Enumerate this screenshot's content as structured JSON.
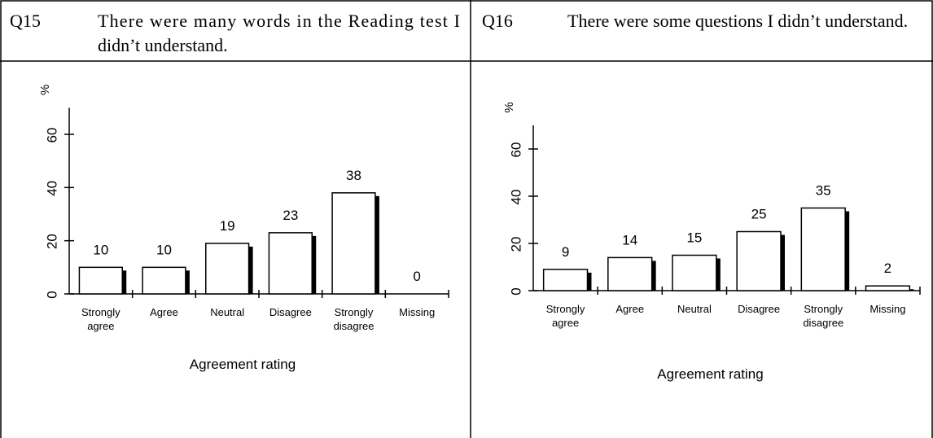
{
  "chart_data": [
    {
      "type": "bar",
      "label": "Q15",
      "title": "There were many words in the Reading test I didn’t understand.",
      "ylabel": "%",
      "xlabel": "Agreement rating",
      "categories": [
        "Strongly agree",
        "Agree",
        "Neutral",
        "Disagree",
        "Strongly disagree",
        "Missing"
      ],
      "values": [
        10,
        10,
        19,
        23,
        38,
        0
      ],
      "color": "#ffffff",
      "ylim": [
        0,
        70
      ],
      "yticks": [
        0,
        20,
        40,
        60
      ]
    },
    {
      "type": "bar",
      "label": "Q16",
      "title": "There were some questions I didn’t understand.",
      "ylabel": "%",
      "xlabel": "Agreement rating",
      "categories": [
        "Strongly agree",
        "Agree",
        "Neutral",
        "Disagree",
        "Strongly disagree",
        "Missing"
      ],
      "values": [
        9,
        14,
        15,
        25,
        35,
        2
      ],
      "color": "#ffffff",
      "ylim": [
        0,
        70
      ],
      "yticks": [
        0,
        20,
        40,
        60
      ]
    }
  ]
}
